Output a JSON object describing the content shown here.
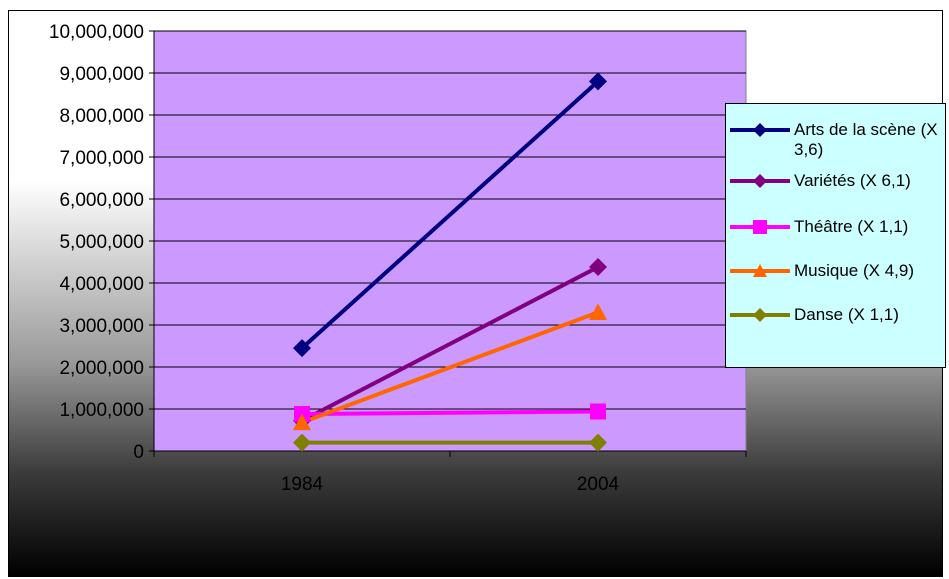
{
  "chart_data": {
    "type": "line",
    "categories": [
      "1984",
      "2004"
    ],
    "ylim": [
      0,
      10000000
    ],
    "y_ticks": [
      "0",
      "1,000,000",
      "2,000,000",
      "3,000,000",
      "4,000,000",
      "5,000,000",
      "6,000,000",
      "7,000,000",
      "8,000,000",
      "9,000,000",
      "10,000,000"
    ],
    "grid": true,
    "legend_position": "right",
    "plot_background": "#cc99ff",
    "series": [
      {
        "name": "Arts de la scène (X 3,6)",
        "values": [
          2450000,
          8800000
        ],
        "color": "#000080",
        "marker": "diamond"
      },
      {
        "name": "Variétés (X 6,1)",
        "values": [
          720000,
          4380000
        ],
        "color": "#800080",
        "marker": "diamond"
      },
      {
        "name": "Théâtre (X 1,1)",
        "values": [
          880000,
          940000
        ],
        "color": "#ff00ff",
        "marker": "square"
      },
      {
        "name": "Musique (X 4,9)",
        "values": [
          680000,
          3300000
        ],
        "color": "#ff6600",
        "marker": "triangle"
      },
      {
        "name": "Danse (X 1,1)",
        "values": [
          200000,
          200000
        ],
        "color": "#808000",
        "marker": "diamond"
      }
    ]
  }
}
